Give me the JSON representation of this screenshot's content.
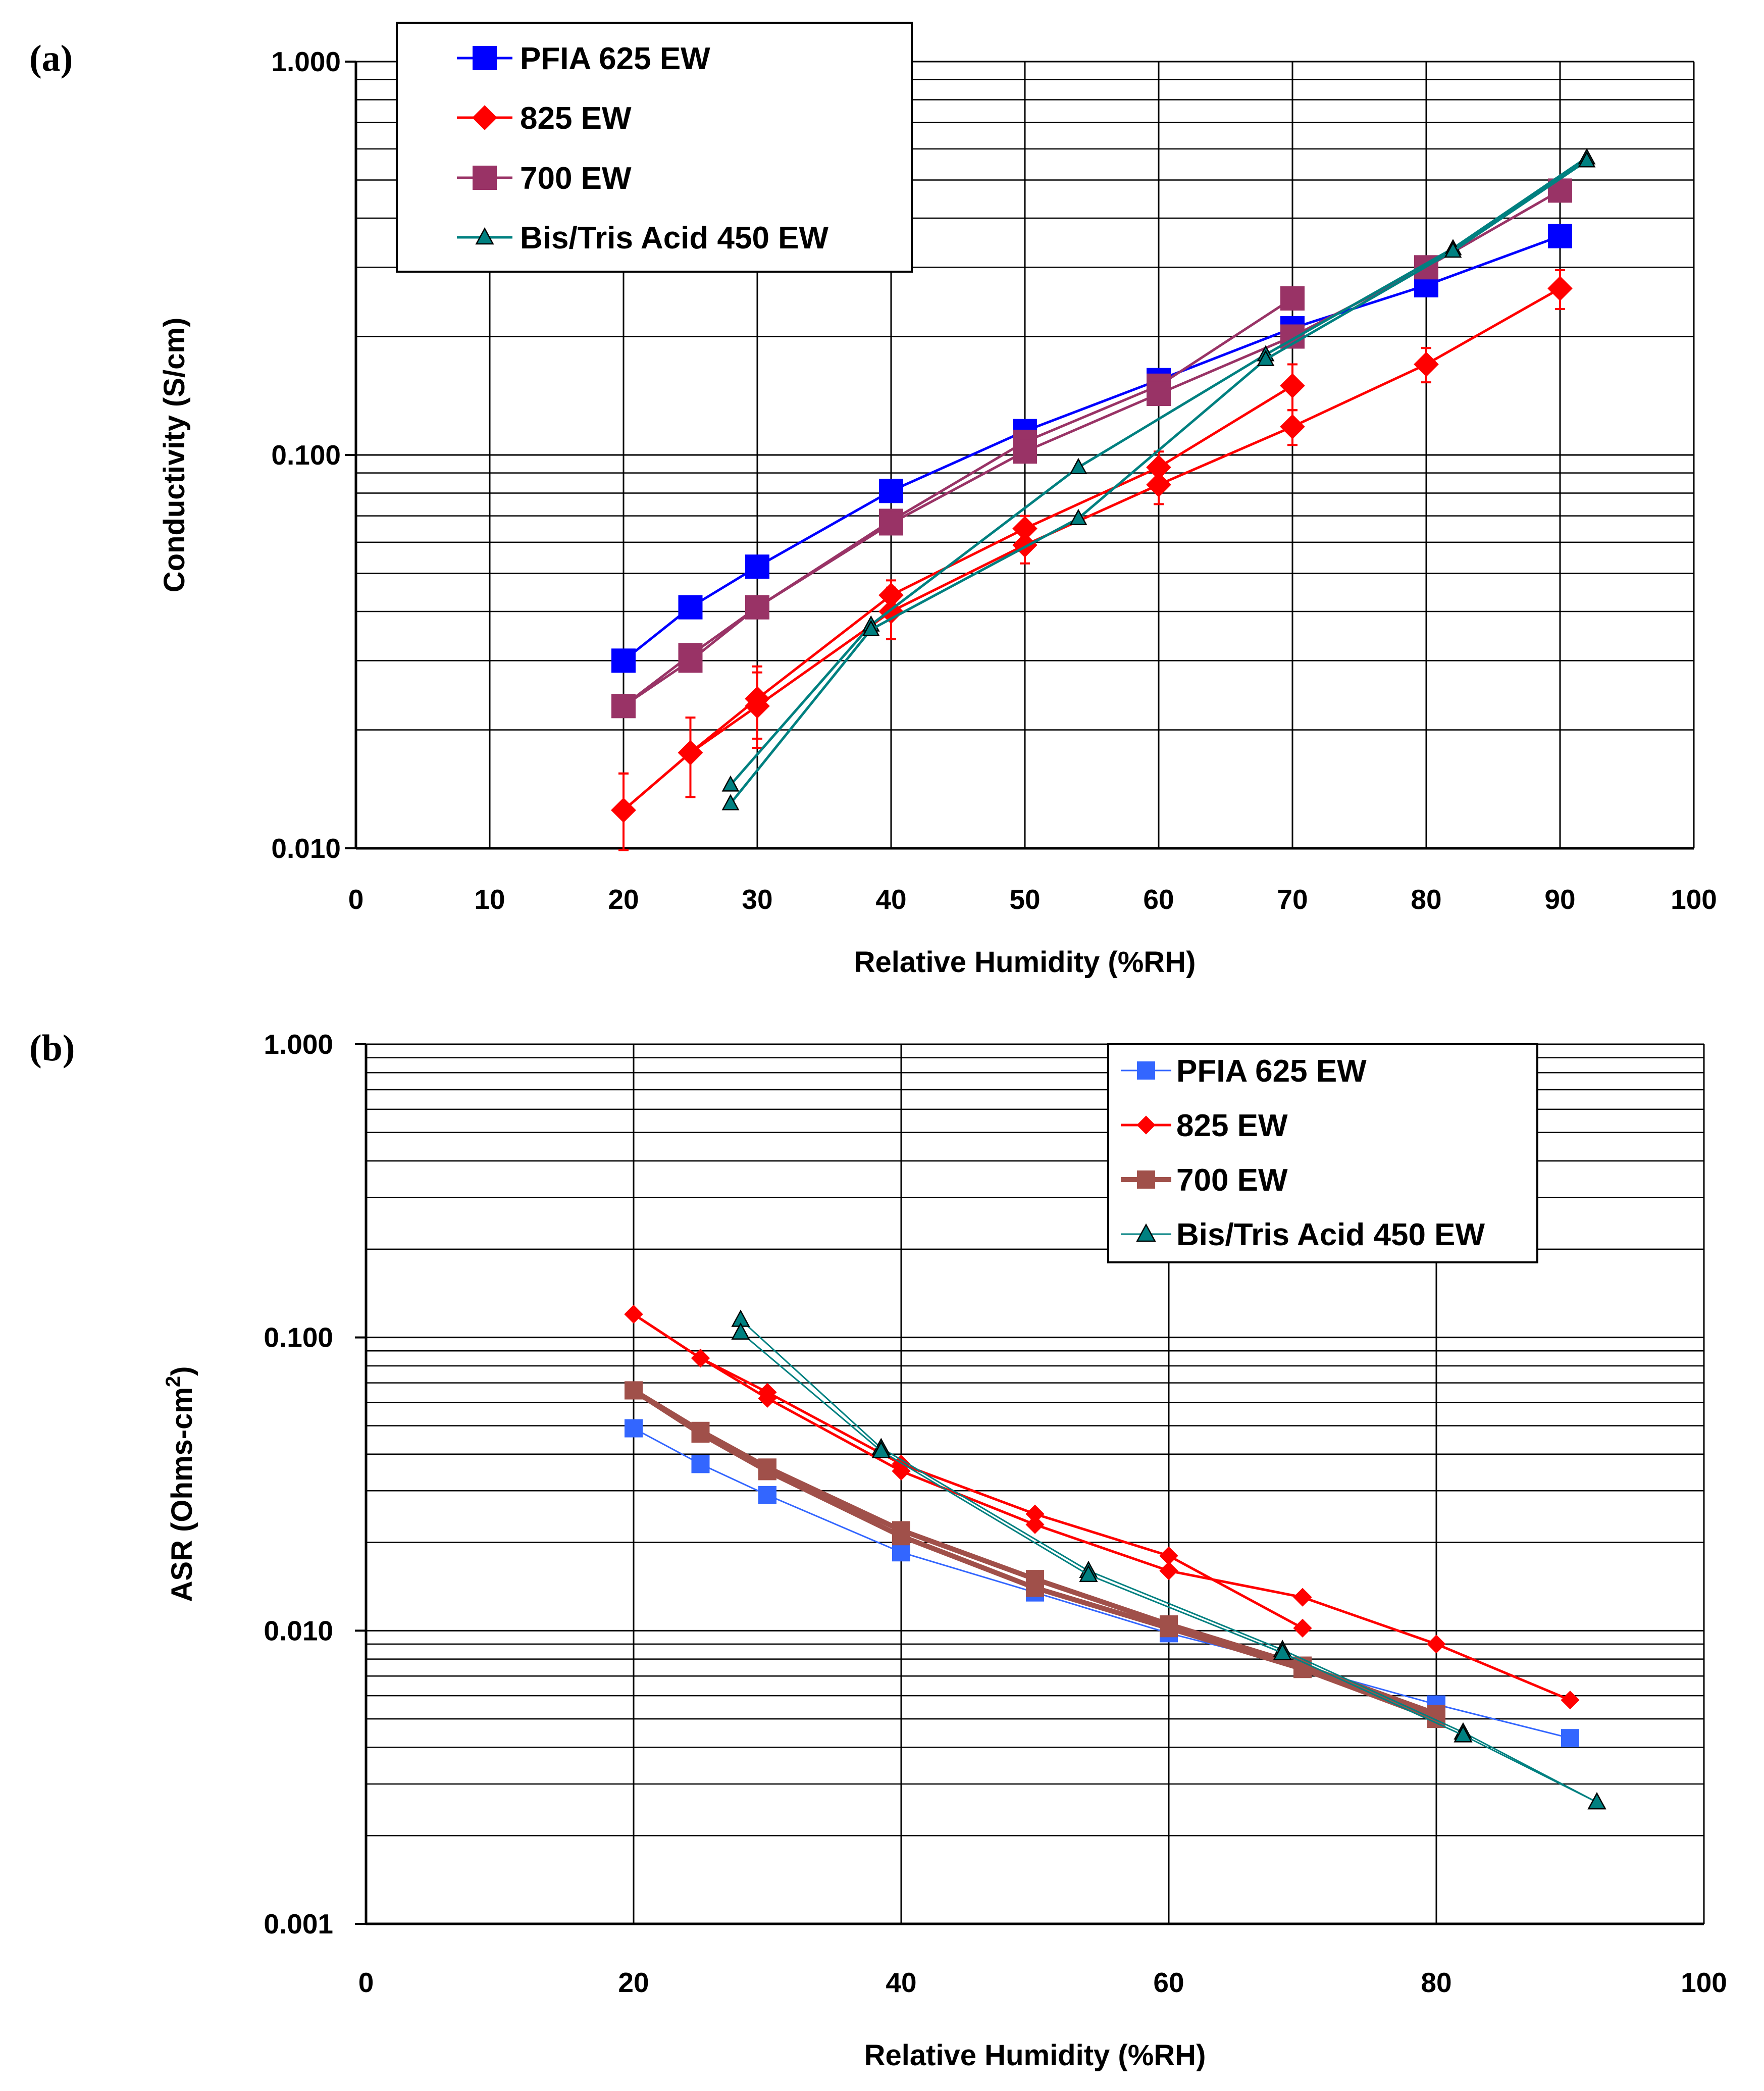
{
  "chart_data": [
    {
      "panel": "(a)",
      "type": "line",
      "title": "",
      "xlabel": "Relative Humidity (%RH)",
      "ylabel": "Conductivity (S/cm)",
      "xlim": [
        0,
        100
      ],
      "ylim": [
        0.01,
        1.0
      ],
      "yscale": "log",
      "grid": true,
      "legend_position": "top-left",
      "x_ticks": [
        0,
        10,
        20,
        30,
        40,
        50,
        60,
        70,
        80,
        90,
        100
      ],
      "x_tick_labels": [
        "0",
        "10",
        "20",
        "30",
        "40",
        "50",
        "60",
        "70",
        "80",
        "90",
        "100"
      ],
      "y_ticks": [
        0.01,
        0.1,
        1.0
      ],
      "y_tick_labels": [
        "0.010",
        "0.100",
        "1.000"
      ],
      "series": [
        {
          "name": "PFIA 625 EW",
          "color": "#0000ff",
          "marker": "square",
          "runs": [
            {
              "x": [
                20,
                25,
                30,
                40,
                50,
                60,
                70,
                80,
                90
              ],
              "y": [
                0.03,
                0.041,
                0.052,
                0.081,
                0.115,
                0.155,
                0.21,
                0.27,
                0.36
              ]
            }
          ]
        },
        {
          "name": "825 EW",
          "color": "#ff0000",
          "marker": "diamond",
          "error_bars": true,
          "runs": [
            {
              "x": [
                20,
                25,
                30,
                40,
                50,
                60,
                70
              ],
              "y": [
                0.0125,
                0.0175,
                0.024,
                0.044,
                0.065,
                0.093,
                0.15
              ],
              "err": [
                0.003,
                0.004,
                0.005,
                0.004,
                0.005,
                0.009,
                0.02
              ]
            },
            {
              "x": [
                20,
                25,
                30,
                40,
                50,
                60,
                70,
                80,
                90
              ],
              "y": [
                0.0125,
                0.0175,
                0.023,
                0.04,
                0.059,
                0.084,
                0.118,
                0.17,
                0.265
              ],
              "err": [
                0.003,
                0.004,
                0.005,
                0.006,
                0.006,
                0.009,
                0.012,
                0.017,
                0.03
              ]
            }
          ]
        },
        {
          "name": "700 EW",
          "color": "#993366",
          "marker": "square",
          "runs": [
            {
              "x": [
                20,
                25,
                30,
                40,
                50,
                60,
                70
              ],
              "y": [
                0.023,
                0.031,
                0.041,
                0.068,
                0.108,
                0.15,
                0.25
              ]
            },
            {
              "x": [
                20,
                25,
                30,
                40,
                50,
                60,
                70,
                80,
                90
              ],
              "y": [
                0.023,
                0.03,
                0.041,
                0.067,
                0.102,
                0.143,
                0.2,
                0.3,
                0.47
              ]
            }
          ]
        },
        {
          "name": "Bis/Tris Acid 450 EW",
          "color": "#008080",
          "marker": "triangle",
          "runs": [
            {
              "x": [
                28,
                38.5,
                54,
                68,
                82,
                92
              ],
              "y": [
                0.0145,
                0.037,
                0.093,
                0.18,
                0.335,
                0.57
              ]
            },
            {
              "x": [
                28,
                38.5,
                54,
                68,
                82,
                92
              ],
              "y": [
                0.013,
                0.036,
                0.069,
                0.175,
                0.33,
                0.56
              ]
            }
          ]
        }
      ]
    },
    {
      "panel": "(b)",
      "type": "line",
      "title": "",
      "xlabel": "Relative Humidity (%RH)",
      "ylabel": "ASR (Ohms-cm",
      "ylabel_superscript": "2",
      "ylabel_suffix": ")",
      "xlim": [
        0,
        100
      ],
      "ylim": [
        0.001,
        1.0
      ],
      "yscale": "log",
      "grid": true,
      "legend_position": "top-right",
      "x_ticks": [
        0,
        20,
        40,
        60,
        80,
        100
      ],
      "x_tick_labels": [
        "0",
        "20",
        "40",
        "60",
        "80",
        "100"
      ],
      "y_ticks": [
        0.001,
        0.01,
        0.1,
        1.0
      ],
      "y_tick_labels": [
        "0.001",
        "0.010",
        "0.100",
        "1.000"
      ],
      "series": [
        {
          "name": "PFIA 625 EW",
          "color": "#3366ff",
          "marker": "square",
          "runs": [
            {
              "x": [
                20,
                25,
                30,
                40,
                50,
                60,
                70,
                80,
                90
              ],
              "y": [
                0.049,
                0.037,
                0.029,
                0.0185,
                0.0135,
                0.0098,
                0.0075,
                0.0056,
                0.0043
              ]
            }
          ]
        },
        {
          "name": "825 EW",
          "color": "#ff0000",
          "marker": "diamond",
          "runs": [
            {
              "x": [
                20,
                25,
                30,
                40,
                50,
                60,
                70
              ],
              "y": [
                0.12,
                0.085,
                0.065,
                0.037,
                0.025,
                0.018,
                0.0102
              ]
            },
            {
              "x": [
                20,
                25,
                30,
                40,
                50,
                60,
                70,
                80,
                90
              ],
              "y": [
                0.12,
                0.085,
                0.062,
                0.035,
                0.023,
                0.016,
                0.013,
                0.009,
                0.0058
              ]
            }
          ]
        },
        {
          "name": "700 EW",
          "color": "#a0504a",
          "marker": "square",
          "runs": [
            {
              "x": [
                20,
                25,
                30,
                40,
                50,
                60,
                70,
                80
              ],
              "y": [
                0.066,
                0.048,
                0.036,
                0.022,
                0.015,
                0.0105,
                0.0076,
                0.0052
              ]
            },
            {
              "x": [
                20,
                25,
                30,
                40,
                50,
                60,
                70,
                80
              ],
              "y": [
                0.066,
                0.047,
                0.035,
                0.021,
                0.014,
                0.0102,
                0.0074,
                0.005
              ]
            }
          ]
        },
        {
          "name": "Bis/Tris Acid 450 EW",
          "color": "#008080",
          "marker": "triangle",
          "runs": [
            {
              "x": [
                28,
                38.5,
                54,
                68.5,
                82,
                92
              ],
              "y": [
                0.115,
                0.042,
                0.016,
                0.0086,
                0.0045,
                0.0026
              ]
            },
            {
              "x": [
                28,
                38.5,
                54,
                68.5,
                82,
                92
              ],
              "y": [
                0.104,
                0.041,
                0.0155,
                0.0084,
                0.0044,
                0.0026
              ]
            }
          ]
        }
      ]
    }
  ]
}
